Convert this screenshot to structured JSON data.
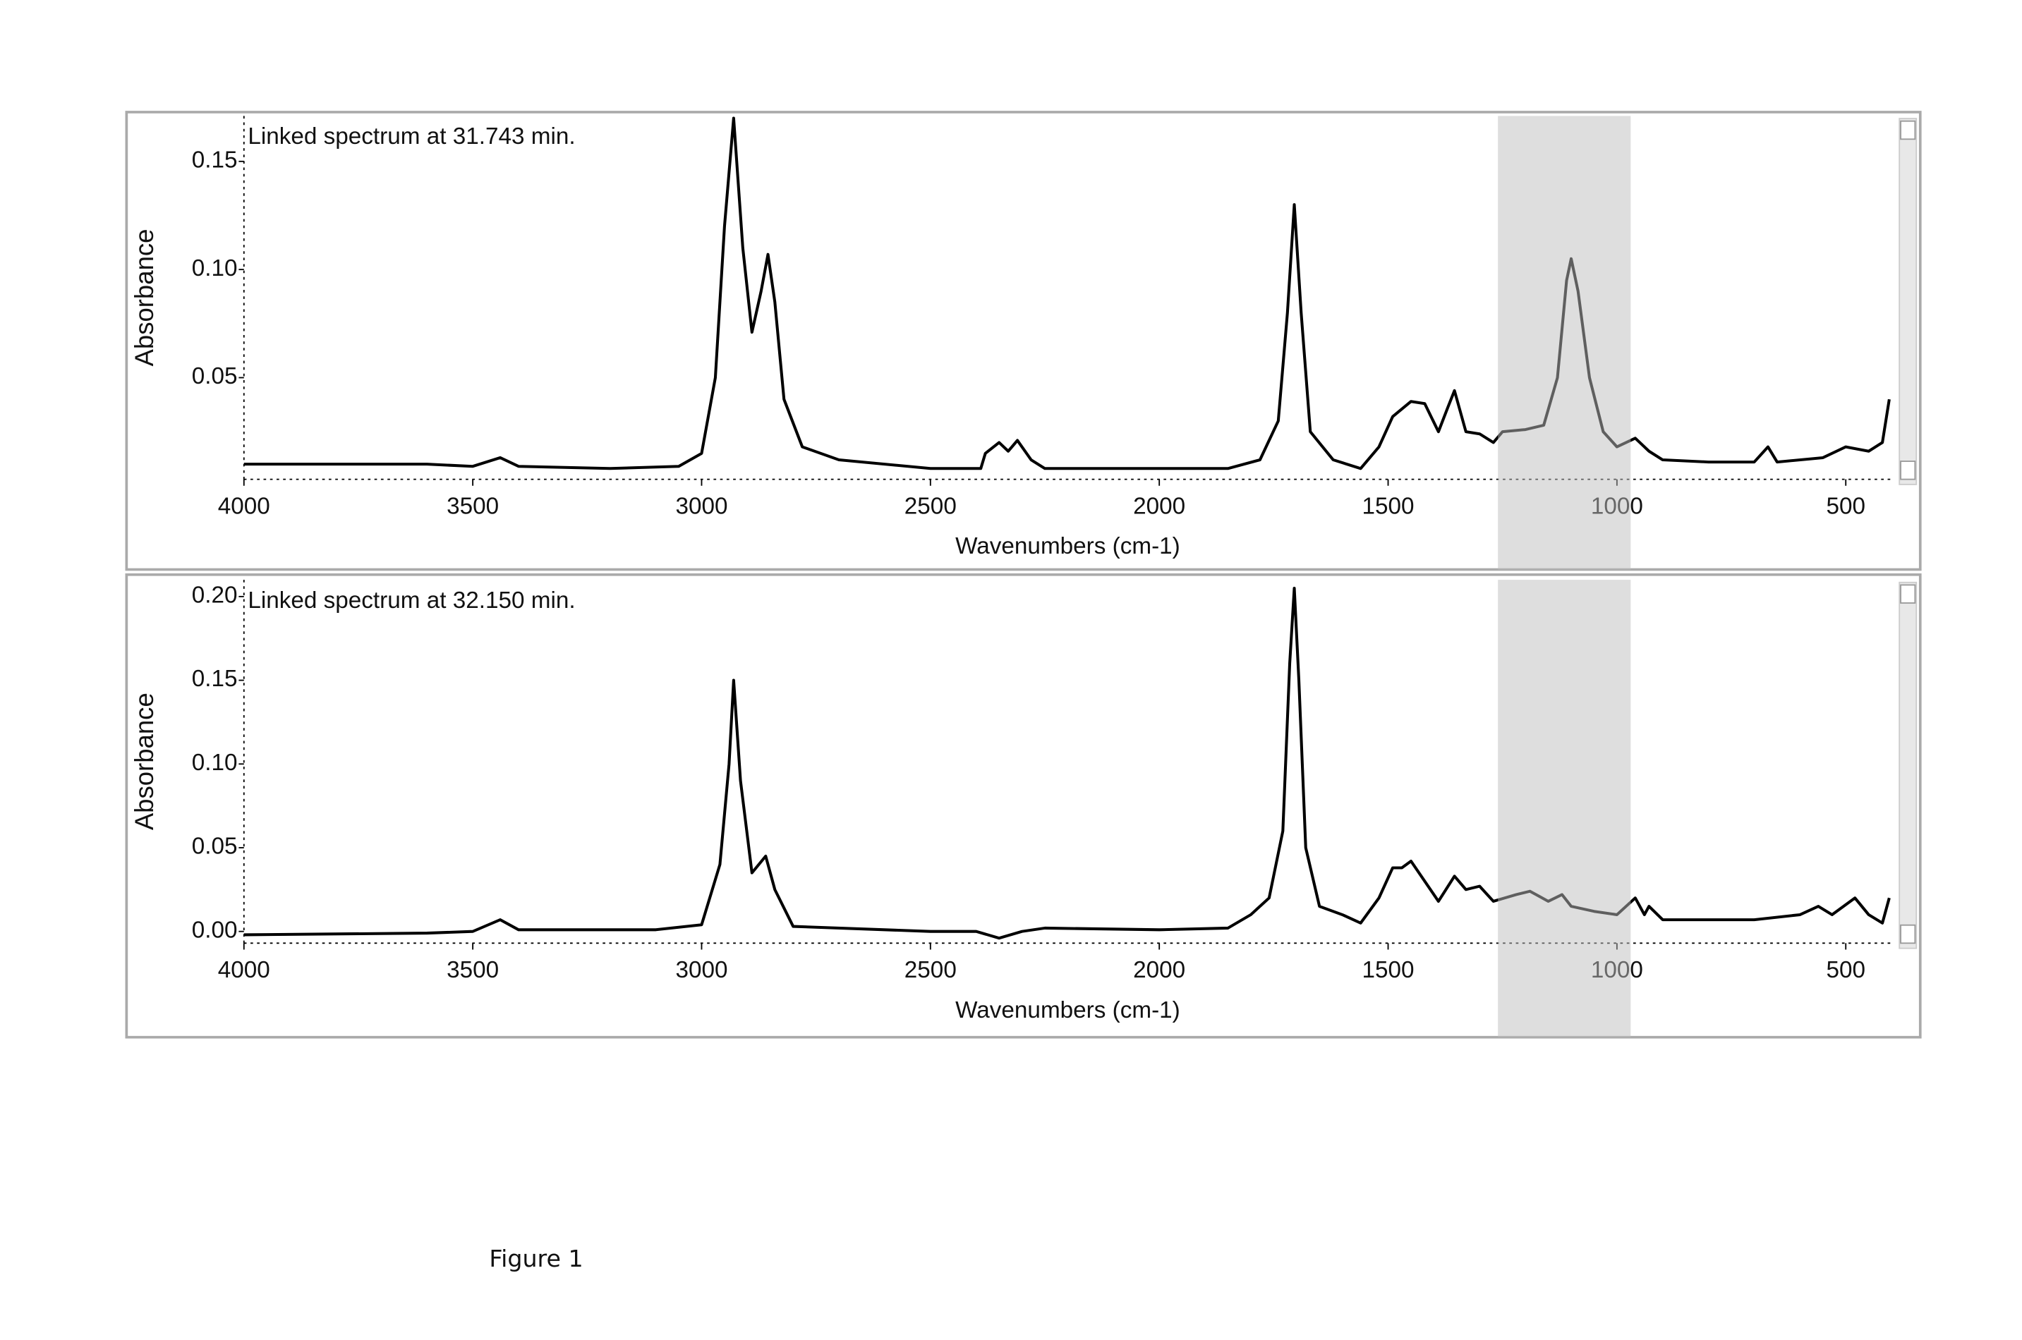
{
  "figure_caption": "Figure 1",
  "chart_data": [
    {
      "type": "line",
      "annotation": "Linked spectrum at 31.743 min.",
      "xlabel": "Wavenumbers (cm-1)",
      "ylabel": "Absorbance",
      "color": "#000000",
      "highlight": [
        1260,
        970
      ],
      "xlim": [
        4000,
        400
      ],
      "xticks": [
        4000,
        3500,
        3000,
        2500,
        2000,
        1500,
        1000,
        500
      ],
      "ylim": [
        0.003,
        0.171
      ],
      "yticks": [
        0.05,
        {
          "value": 0.1,
          "label": "0.10"
        },
        0.15
      ],
      "x": [
        4000,
        3800,
        3600,
        3500,
        3440,
        3400,
        3200,
        3050,
        3000,
        2970,
        2950,
        2930,
        2910,
        2890,
        2870,
        2855,
        2840,
        2820,
        2780,
        2700,
        2500,
        2390,
        2380,
        2350,
        2330,
        2310,
        2280,
        2250,
        2000,
        1850,
        1780,
        1740,
        1720,
        1705,
        1690,
        1670,
        1620,
        1560,
        1520,
        1490,
        1450,
        1420,
        1390,
        1370,
        1355,
        1330,
        1300,
        1270,
        1250,
        1200,
        1160,
        1130,
        1110,
        1100,
        1085,
        1060,
        1030,
        1000,
        960,
        950,
        930,
        900,
        800,
        700,
        670,
        650,
        550,
        500,
        450,
        420,
        405
      ],
      "values": [
        0.01,
        0.01,
        0.01,
        0.009,
        0.013,
        0.009,
        0.008,
        0.009,
        0.015,
        0.05,
        0.12,
        0.17,
        0.11,
        0.071,
        0.09,
        0.107,
        0.085,
        0.04,
        0.018,
        0.012,
        0.008,
        0.008,
        0.015,
        0.02,
        0.016,
        0.021,
        0.012,
        0.008,
        0.008,
        0.008,
        0.012,
        0.03,
        0.08,
        0.13,
        0.08,
        0.025,
        0.012,
        0.008,
        0.018,
        0.032,
        0.039,
        0.038,
        0.025,
        0.036,
        0.044,
        0.025,
        0.024,
        0.02,
        0.025,
        0.026,
        0.028,
        0.05,
        0.095,
        0.105,
        0.09,
        0.05,
        0.025,
        0.018,
        0.022,
        0.02,
        0.016,
        0.012,
        0.011,
        0.011,
        0.018,
        0.011,
        0.013,
        0.018,
        0.016,
        0.02,
        0.04
      ]
    },
    {
      "type": "line",
      "annotation": "Linked spectrum at 32.150 min.",
      "xlabel": "Wavenumbers (cm-1)",
      "ylabel": "Absorbance",
      "color": "#000000",
      "highlight": [
        1260,
        970
      ],
      "xlim": [
        4000,
        400
      ],
      "xticks": [
        4000,
        3500,
        3000,
        2500,
        2000,
        1500,
        1000,
        500
      ],
      "ylim": [
        -0.007,
        0.21
      ],
      "yticks": [
        {
          "value": 0,
          "label": "0.00"
        },
        0.05,
        {
          "value": 0.1,
          "label": "0.10"
        },
        0.15,
        {
          "value": 0.2,
          "label": "0.20"
        }
      ],
      "x": [
        4000,
        3600,
        3500,
        3440,
        3400,
        3100,
        3000,
        2960,
        2940,
        2930,
        2915,
        2890,
        2860,
        2840,
        2800,
        2500,
        2400,
        2350,
        2300,
        2250,
        2000,
        1850,
        1800,
        1760,
        1730,
        1715,
        1705,
        1695,
        1680,
        1650,
        1600,
        1560,
        1520,
        1490,
        1470,
        1450,
        1420,
        1390,
        1355,
        1330,
        1300,
        1270,
        1220,
        1190,
        1150,
        1120,
        1100,
        1050,
        1000,
        960,
        940,
        930,
        900,
        700,
        600,
        560,
        530,
        480,
        450,
        420,
        405
      ],
      "values": [
        -0.002,
        -0.001,
        0.0,
        0.007,
        0.001,
        0.001,
        0.004,
        0.04,
        0.1,
        0.15,
        0.09,
        0.035,
        0.045,
        0.025,
        0.003,
        0.0,
        0.0,
        -0.004,
        0.0,
        0.002,
        0.001,
        0.002,
        0.01,
        0.02,
        0.06,
        0.16,
        0.205,
        0.15,
        0.05,
        0.015,
        0.01,
        0.005,
        0.02,
        0.038,
        0.038,
        0.042,
        0.03,
        0.018,
        0.033,
        0.025,
        0.027,
        0.018,
        0.022,
        0.024,
        0.018,
        0.022,
        0.015,
        0.012,
        0.01,
        0.02,
        0.01,
        0.015,
        0.007,
        0.007,
        0.01,
        0.015,
        0.01,
        0.02,
        0.01,
        0.005,
        0.02
      ]
    }
  ]
}
